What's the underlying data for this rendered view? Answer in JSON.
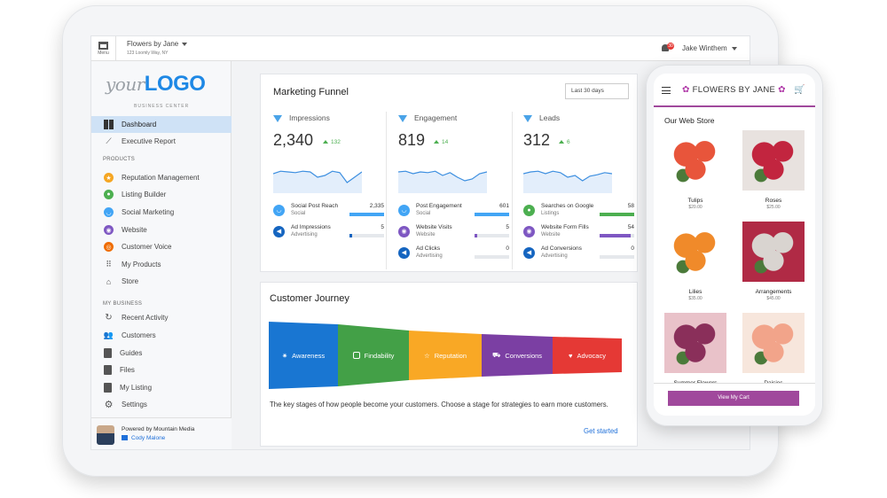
{
  "topbar": {
    "menu_label": "Menu",
    "business_name": "Flowers by Jane",
    "business_address": "123 Loomly Way, NY",
    "notification_count": "30",
    "user_name": "Jake Winthem"
  },
  "sidebar": {
    "logo_prefix": "your",
    "logo_main": "LOGO",
    "logo_sub": "BUSINESS CENTER",
    "top_items": [
      {
        "label": "Dashboard",
        "icon": "dashboard-icon"
      },
      {
        "label": "Executive Report",
        "icon": "trend-icon"
      }
    ],
    "products_header": "PRODUCTS",
    "products": [
      {
        "label": "Reputation Management",
        "icon": "star-icon",
        "color": "#f5a623"
      },
      {
        "label": "Listing Builder",
        "icon": "pin-icon",
        "color": "#4caf50"
      },
      {
        "label": "Social Marketing",
        "icon": "chat-icon",
        "color": "#42a5f5"
      },
      {
        "label": "Website",
        "icon": "globe-icon",
        "color": "#7e57c2"
      },
      {
        "label": "Customer Voice",
        "icon": "voice-icon",
        "color": "#ef6c00"
      },
      {
        "label": "My Products",
        "icon": "grid-icon",
        "color": "#666666"
      },
      {
        "label": "Store",
        "icon": "store-icon",
        "color": "#666666"
      }
    ],
    "business_header": "MY BUSINESS",
    "business": [
      {
        "label": "Recent Activity",
        "icon": "refresh-icon"
      },
      {
        "label": "Customers",
        "icon": "people-icon"
      },
      {
        "label": "Guides",
        "icon": "book-icon"
      },
      {
        "label": "Files",
        "icon": "file-icon"
      },
      {
        "label": "My Listing",
        "icon": "listing-icon"
      },
      {
        "label": "Settings",
        "icon": "gear-icon"
      }
    ],
    "powered_by": "Powered by Mountain Media",
    "contact_name": "Cody Malone"
  },
  "funnel": {
    "title": "Marketing Funnel",
    "range": "Last 30 days",
    "columns": [
      {
        "title": "Impressions",
        "value": "2,340",
        "delta": "132",
        "spark": [
          0.55,
          0.62,
          0.6,
          0.58,
          0.62,
          0.6,
          0.45,
          0.5,
          0.62,
          0.58,
          0.3,
          0.45,
          0.6
        ],
        "metrics": [
          {
            "label": "Social Post Reach",
            "sub": "Social",
            "value": "2,335",
            "fill": 0.99,
            "color": "#42a5f5"
          },
          {
            "label": "Ad Impressions",
            "sub": "Advertising",
            "value": "5",
            "fill": 0.08,
            "color": "#1565c0"
          }
        ]
      },
      {
        "title": "Engagement",
        "value": "819",
        "delta": "14",
        "spark": [
          0.6,
          0.62,
          0.55,
          0.6,
          0.58,
          0.62,
          0.5,
          0.58,
          0.45,
          0.35,
          0.4,
          0.55,
          0.6
        ],
        "metrics": [
          {
            "label": "Post Engagement",
            "sub": "Social",
            "value": "601",
            "fill": 0.99,
            "color": "#42a5f5"
          },
          {
            "label": "Website Visits",
            "sub": "Website",
            "value": "5",
            "fill": 0.08,
            "color": "#7e57c2"
          },
          {
            "label": "Ad Clicks",
            "sub": "Advertising",
            "value": "0",
            "fill": 0,
            "color": "#1565c0"
          }
        ]
      },
      {
        "title": "Leads",
        "value": "312",
        "delta": "6",
        "spark": [
          0.55,
          0.6,
          0.62,
          0.55,
          0.62,
          0.58,
          0.45,
          0.5,
          0.35,
          0.48,
          0.52,
          0.58,
          0.55
        ],
        "metrics": [
          {
            "label": "Searches on Google",
            "sub": "Listings",
            "value": "58",
            "fill": 0.99,
            "color": "#4caf50"
          },
          {
            "label": "Website Form Fills",
            "sub": "Website",
            "value": "54",
            "fill": 0.9,
            "color": "#7e57c2"
          },
          {
            "label": "Ad Conversions",
            "sub": "Advertising",
            "value": "0",
            "fill": 0,
            "color": "#1565c0"
          }
        ]
      }
    ]
  },
  "journey": {
    "title": "Customer Journey",
    "stages": [
      {
        "label": "Awareness",
        "color": "#1976d2",
        "icon": "bulb-icon"
      },
      {
        "label": "Findability",
        "color": "#43a047",
        "icon": "search-doc-icon"
      },
      {
        "label": "Reputation",
        "color": "#f9a825",
        "icon": "star-outline-icon"
      },
      {
        "label": "Conversions",
        "color": "#7b3fa3",
        "icon": "cart-icon"
      },
      {
        "label": "Advocacy",
        "color": "#e53935",
        "icon": "heart-icon"
      }
    ],
    "description": "The key stages of how people become your customers. Choose a stage for strategies to earn more customers.",
    "link": "Get started"
  },
  "phone": {
    "brand": "FLOWERS BY JANE",
    "section_title": "Our Web Store",
    "products": [
      {
        "name": "Tulips",
        "price": "$20.00",
        "c1": "#e8553b",
        "c2": "#ffffff"
      },
      {
        "name": "Roses",
        "price": "$25.00",
        "c1": "#c2253f",
        "c2": "#e8e2df"
      },
      {
        "name": "Lilies",
        "price": "$35.00",
        "c1": "#f08a2a",
        "c2": "#ffffff"
      },
      {
        "name": "Arrangements",
        "price": "$45.00",
        "c1": "#d9d4d0",
        "c2": "#b02a45"
      },
      {
        "name": "Summer Flowers",
        "price": "",
        "c1": "#8a2f5a",
        "c2": "#e9c2c9"
      },
      {
        "name": "Daisies",
        "price": "",
        "c1": "#f2a48a",
        "c2": "#f7e6dc"
      }
    ],
    "cart_button": "View My Cart"
  }
}
